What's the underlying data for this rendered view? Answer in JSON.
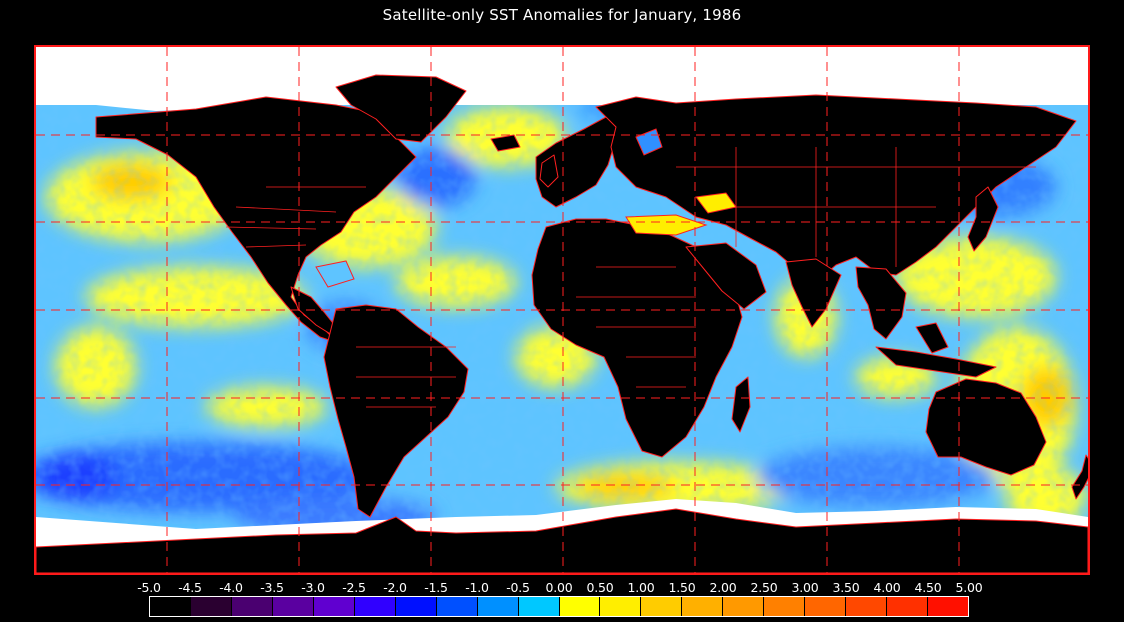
{
  "title": "Satellite-only SST Anomalies for January, 1986",
  "colorbar": {
    "labels": [
      "-5.0",
      "-4.5",
      "-4.0",
      "-3.5",
      "-3.0",
      "-2.5",
      "-2.0",
      "-1.5",
      "-1.0",
      "-0.5",
      "0.00",
      "0.50",
      "1.00",
      "1.50",
      "2.00",
      "2.50",
      "3.00",
      "3.50",
      "4.00",
      "4.50",
      "5.00"
    ],
    "colors": [
      "#000000",
      "#2a0030",
      "#4a0070",
      "#5a00a0",
      "#6000d0",
      "#3000ff",
      "#0010ff",
      "#0050ff",
      "#0090ff",
      "#00c8ff",
      "#ffff00",
      "#ffee00",
      "#ffcc00",
      "#ffb000",
      "#ff9900",
      "#ff8000",
      "#ff6600",
      "#ff4800",
      "#ff3000",
      "#ff1000"
    ]
  },
  "colors": {
    "background": "#000000",
    "land": "#000000",
    "ice": "#ffffff",
    "coastline": "#ff2020",
    "grid": "#ff2020",
    "ocean_base": "#66ccff"
  }
}
